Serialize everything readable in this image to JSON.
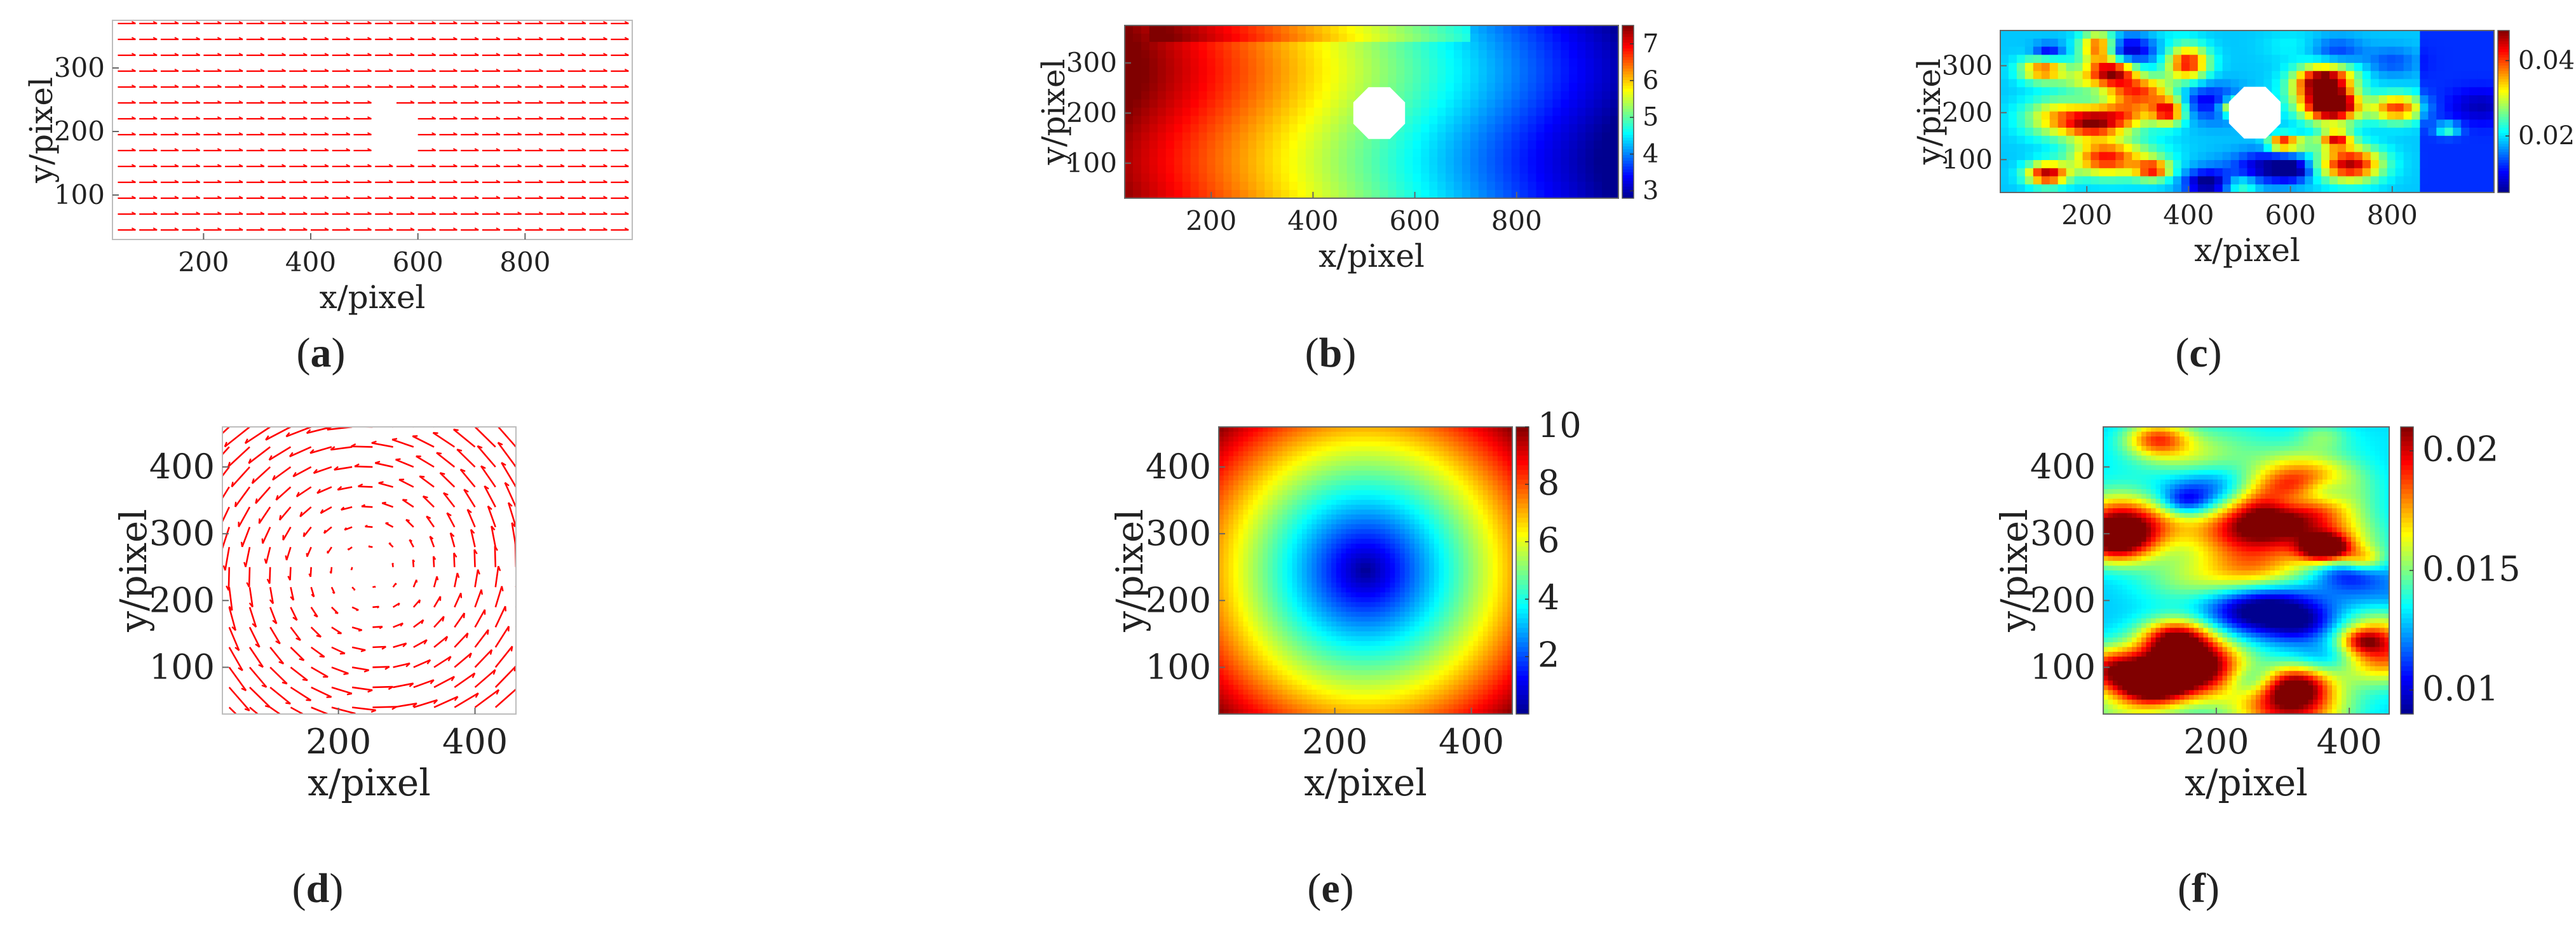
{
  "captions": [
    "a",
    "b",
    "c",
    "d",
    "e",
    "f"
  ],
  "colors": {
    "arrow": "#ff0000",
    "jet": [
      "#00008f",
      "#0000ff",
      "#00ffff",
      "#ffff00",
      "#ff0000",
      "#800000"
    ]
  },
  "chart_data": [
    {
      "panel": "a",
      "type": "quiver",
      "field": "uniform",
      "xlabel": "x/pixel",
      "ylabel": "y/pixel",
      "xlim": [
        30,
        1000
      ],
      "ylim": [
        30,
        375
      ],
      "xticks": [
        200,
        400,
        600,
        800
      ],
      "yticks": [
        100,
        200,
        300
      ],
      "obstacle": {
        "cx": 530,
        "cy": 200,
        "r": 55
      }
    },
    {
      "panel": "b",
      "type": "heatmap",
      "field": "gradient-decreasing-x",
      "xlabel": "x/pixel",
      "ylabel": "y/pixel",
      "xlim": [
        30,
        1000
      ],
      "ylim": [
        30,
        375
      ],
      "xticks": [
        200,
        400,
        600,
        800
      ],
      "yticks": [
        100,
        200,
        300
      ],
      "colorbar": {
        "range": [
          2.8,
          7.5
        ],
        "ticks": [
          "3",
          "4",
          "5",
          "6",
          "7"
        ],
        "values": [
          3,
          4,
          5,
          6,
          7
        ]
      },
      "obstacle": {
        "cx": 530,
        "cy": 200,
        "r": 55
      }
    },
    {
      "panel": "c",
      "type": "heatmap",
      "field": "noise",
      "xlabel": "x/pixel",
      "ylabel": "y/pixel",
      "xlim": [
        30,
        1000
      ],
      "ylim": [
        30,
        375
      ],
      "xticks": [
        200,
        400,
        600,
        800
      ],
      "yticks": [
        100,
        200,
        300
      ],
      "colorbar": {
        "range": [
          0.005,
          0.048
        ],
        "ticks": [
          "0.02",
          "0.04"
        ],
        "values": [
          0.02,
          0.04
        ]
      },
      "obstacle": {
        "cx": 530,
        "cy": 200,
        "r": 55
      }
    },
    {
      "panel": "d",
      "type": "quiver",
      "field": "rotation",
      "xlabel": "x/pixel",
      "ylabel": "y/pixel",
      "xlim": [
        30,
        460
      ],
      "ylim": [
        30,
        460
      ],
      "xticks": [
        200,
        400
      ],
      "yticks": [
        100,
        200,
        300,
        400
      ],
      "center": [
        245,
        245
      ]
    },
    {
      "panel": "e",
      "type": "heatmap",
      "field": "radial",
      "xlabel": "x/pixel",
      "ylabel": "y/pixel",
      "xlim": [
        30,
        460
      ],
      "ylim": [
        30,
        460
      ],
      "xticks": [
        200,
        400
      ],
      "yticks": [
        100,
        200,
        300,
        400
      ],
      "colorbar": {
        "range": [
          0,
          10
        ],
        "ticks": [
          "2",
          "4",
          "6",
          "8",
          "10"
        ],
        "values": [
          2,
          4,
          6,
          8,
          10
        ]
      },
      "center": [
        245,
        245
      ]
    },
    {
      "panel": "f",
      "type": "heatmap",
      "field": "noise",
      "xlabel": "x/pixel",
      "ylabel": "y/pixel",
      "xlim": [
        30,
        460
      ],
      "ylim": [
        30,
        460
      ],
      "xticks": [
        200,
        400
      ],
      "yticks": [
        100,
        200,
        300,
        400
      ],
      "colorbar": {
        "range": [
          0.009,
          0.021
        ],
        "ticks": [
          "0.01",
          "0.015",
          "0.02"
        ],
        "values": [
          0.01,
          0.015,
          0.02
        ]
      }
    }
  ]
}
